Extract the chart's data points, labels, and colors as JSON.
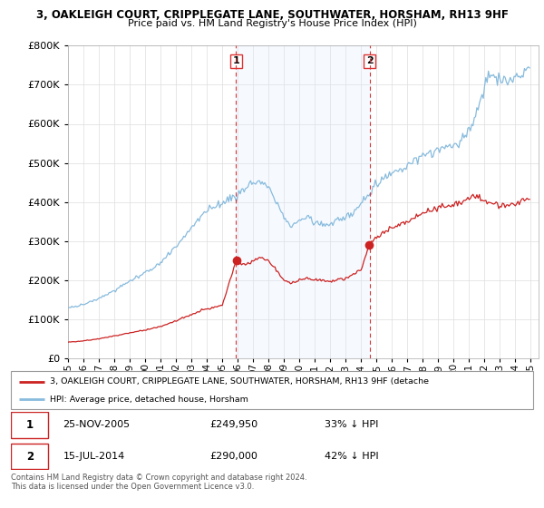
{
  "title": "3, OAKLEIGH COURT, CRIPPLEGATE LANE, SOUTHWATER, HORSHAM, RH13 9HF",
  "subtitle": "Price paid vs. HM Land Registry's House Price Index (HPI)",
  "hpi_label": "HPI: Average price, detached house, Horsham",
  "property_label": "3, OAKLEIGH COURT, CRIPPLEGATE LANE, SOUTHWATER, HORSHAM, RH13 9HF (detache",
  "sale1_date": "25-NOV-2005",
  "sale1_price": 249950,
  "sale1_label": "33% ↓ HPI",
  "sale2_date": "15-JUL-2014",
  "sale2_price": 290000,
  "sale2_label": "42% ↓ HPI",
  "hpi_color": "#88bbdd",
  "property_color": "#cc2222",
  "vline_color": "#dd3333",
  "shade_color": "#ddeeff",
  "background_color": "#ffffff",
  "grid_color": "#dddddd",
  "ylim": [
    0,
    800000
  ],
  "yticks": [
    0,
    100000,
    200000,
    300000,
    400000,
    500000,
    600000,
    700000,
    800000
  ],
  "sale1_x": 2005.9,
  "sale2_x": 2014.54,
  "sale1_prop_y": 249950,
  "sale2_prop_y": 290000,
  "xlim": [
    1995.0,
    2025.5
  ],
  "footnote": "Contains HM Land Registry data © Crown copyright and database right 2024.\nThis data is licensed under the Open Government Licence v3.0."
}
